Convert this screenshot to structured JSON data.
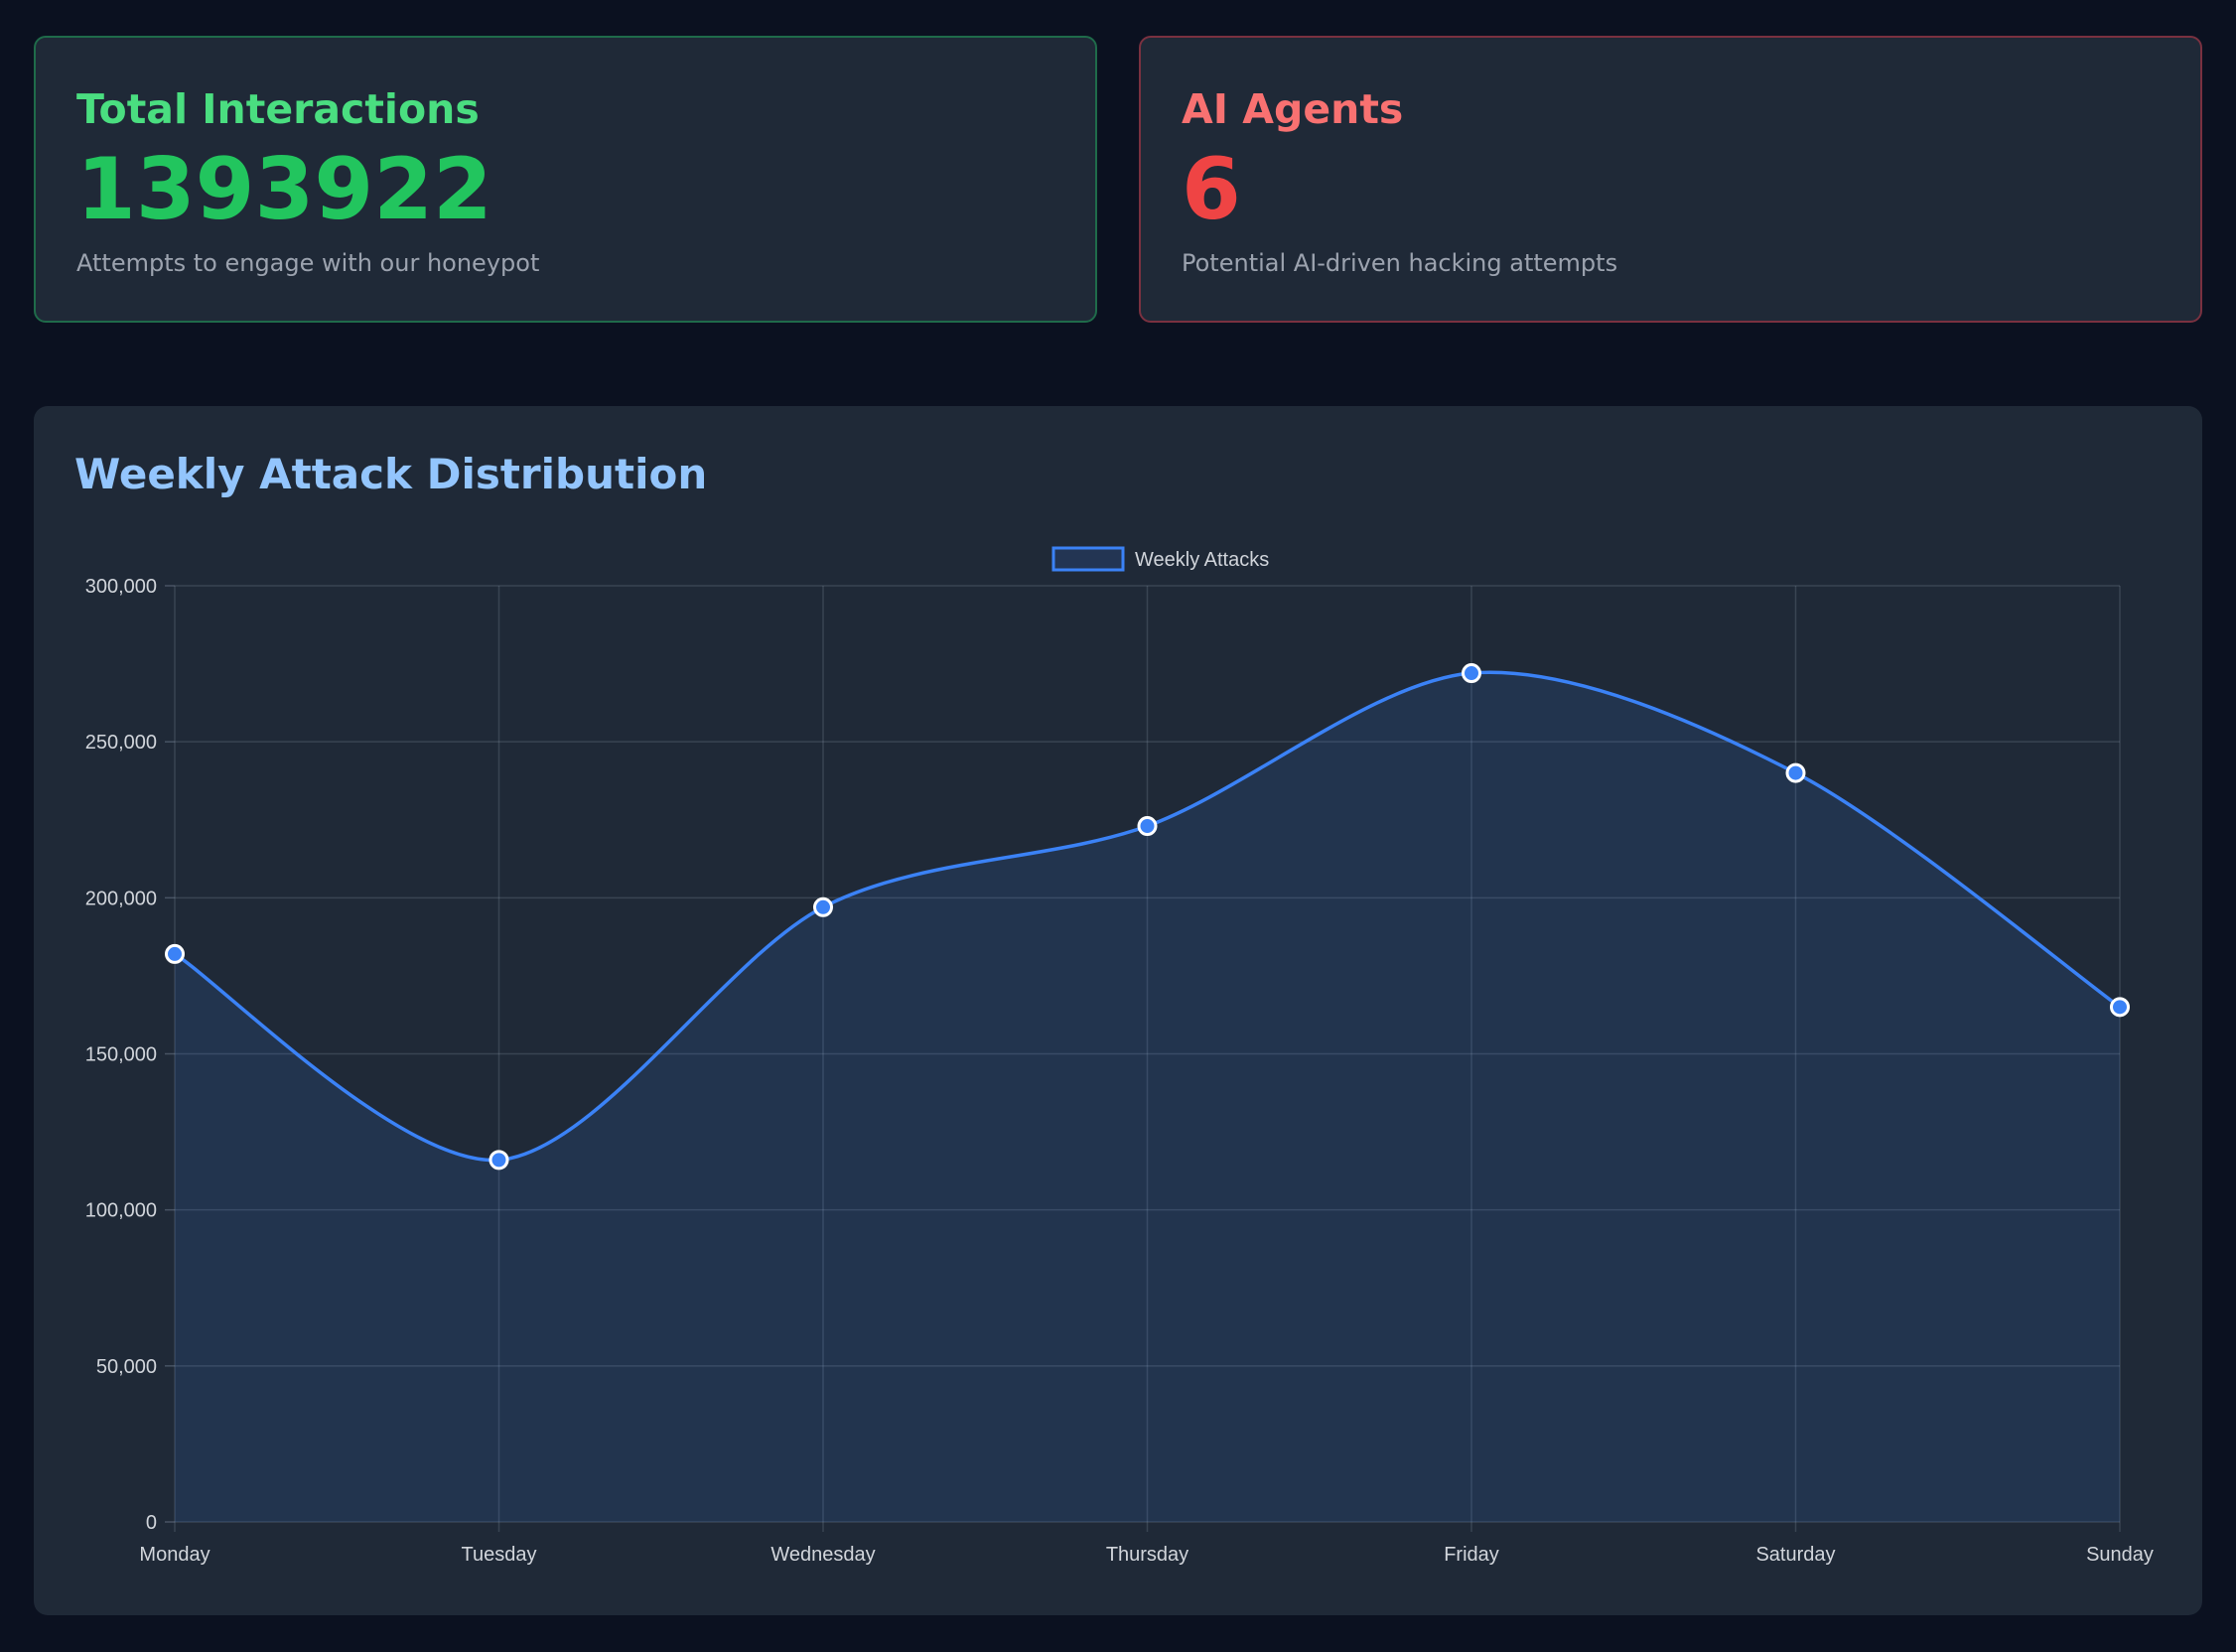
{
  "stats": {
    "interactions": {
      "title": "Total Interactions",
      "value": "1393922",
      "description": "Attempts to engage with our honeypot",
      "title_color": "#4ade80",
      "value_color": "#22c55e"
    },
    "agents": {
      "title": "AI Agents",
      "value": "6",
      "description": "Potential AI-driven hacking attempts",
      "title_color": "#f87171",
      "value_color": "#ef4444"
    }
  },
  "chart_panel": {
    "title": "Weekly Attack Distribution"
  },
  "chart_data": {
    "type": "area",
    "categories": [
      "Monday",
      "Tuesday",
      "Wednesday",
      "Thursday",
      "Friday",
      "Saturday",
      "Sunday"
    ],
    "series": [
      {
        "name": "Weekly Attacks",
        "values": [
          182000,
          116000,
          197000,
          223000,
          272000,
          240000,
          165000
        ],
        "color": "#3b82f6"
      }
    ],
    "ylim": [
      0,
      300000
    ],
    "yticks": [
      0,
      50000,
      100000,
      150000,
      200000,
      250000,
      300000
    ],
    "ytick_labels": [
      "0",
      "50,000",
      "100,000",
      "150,000",
      "200,000",
      "250,000",
      "300,000"
    ],
    "grid": true,
    "legend": "top-center"
  }
}
